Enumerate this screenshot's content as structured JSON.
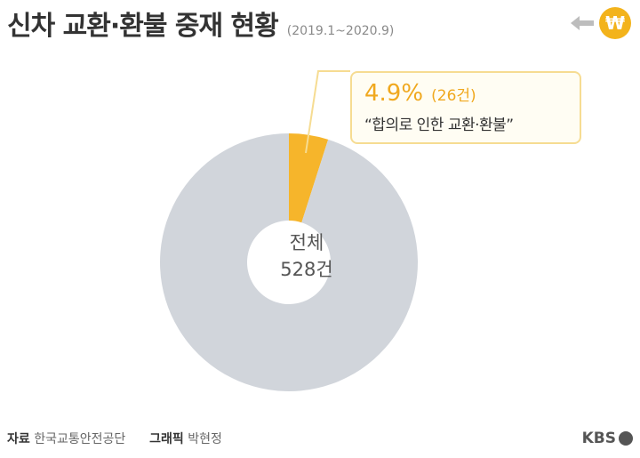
{
  "header": {
    "title": "신차 교환·환불 중재 현황",
    "period": "(2019.1~2020.9)"
  },
  "badge": {
    "symbol": "₩"
  },
  "chart_data": {
    "type": "pie",
    "donut": true,
    "total": 528,
    "slices": [
      {
        "label": "합의로 인한 교환·환불",
        "value": 26,
        "percent": 4.9,
        "color": "#f6b52b"
      },
      {
        "label": "",
        "value": 502,
        "percent": 95.1,
        "color": "#d1d5db"
      }
    ],
    "center_label": {
      "line1": "전체",
      "line2": "528건"
    },
    "callout": {
      "value": "4.9%",
      "count": "(26건)",
      "description": "“합의로 인한 교환·환불”"
    }
  },
  "footer": {
    "source_label": "자료",
    "source": "한국교통안전공단",
    "graphic_label": "그래픽",
    "graphic": "박현정"
  },
  "logo": {
    "text": "KBS"
  }
}
